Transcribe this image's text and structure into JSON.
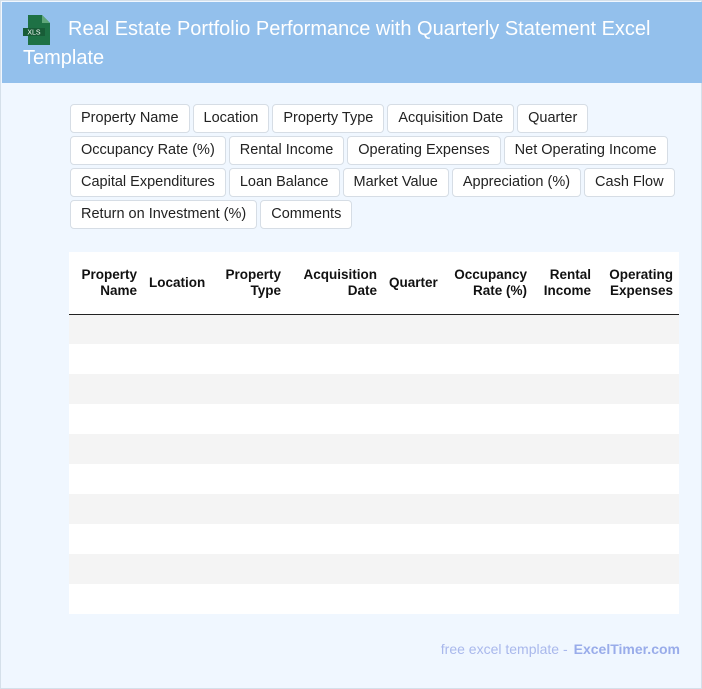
{
  "header": {
    "title": "Real Estate Portfolio Performance with Quarterly Statement Excel Template",
    "icon": "xls-file-icon",
    "icon_label": "XLS"
  },
  "chips": [
    "Property Name",
    "Location",
    "Property Type",
    "Acquisition Date",
    "Quarter",
    "Occupancy Rate (%)",
    "Rental Income",
    "Operating Expenses",
    "Net Operating Income",
    "Capital Expenditures",
    "Loan Balance",
    "Market Value",
    "Appreciation (%)",
    "Cash Flow",
    "Return on Investment (%)",
    "Comments"
  ],
  "table": {
    "columns": [
      {
        "l1": "Property",
        "l2": "Name"
      },
      {
        "l1": "Location",
        "l2": ""
      },
      {
        "l1": "Property",
        "l2": "Type"
      },
      {
        "l1": "Acquisition",
        "l2": "Date"
      },
      {
        "l1": "Quarter",
        "l2": ""
      },
      {
        "l1": "Occupancy",
        "l2": "Rate (%)"
      },
      {
        "l1": "Rental",
        "l2": "Income"
      },
      {
        "l1": "Operating",
        "l2": "Expenses"
      }
    ],
    "row_count": 10
  },
  "footer": {
    "text": "free excel template -",
    "brand": "ExcelTimer.com"
  },
  "colors": {
    "header": "#93c0ec",
    "background": "#f0f7ff",
    "icon": "#1e7145"
  }
}
